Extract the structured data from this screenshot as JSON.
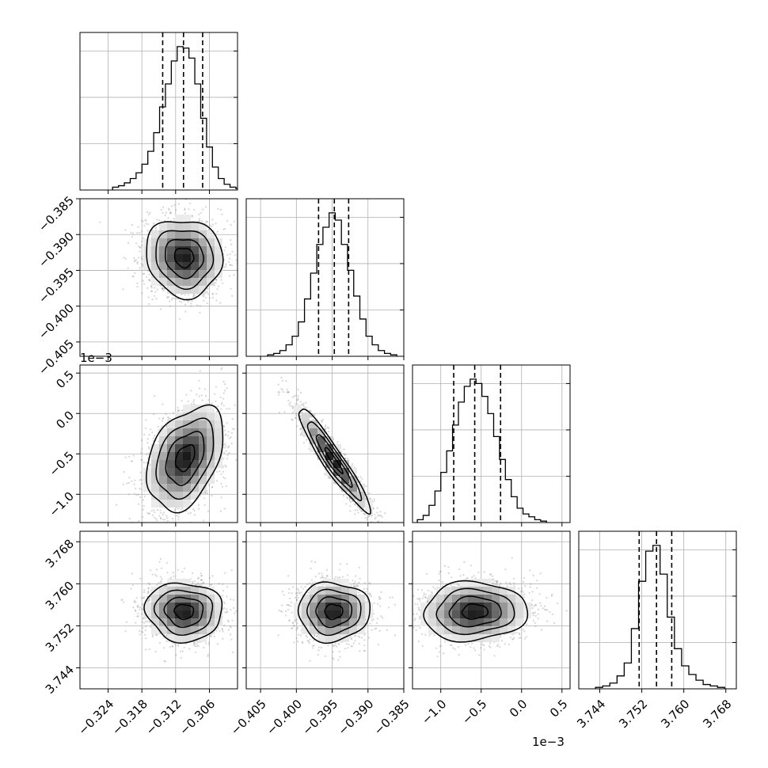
{
  "chart_data": {
    "type": "corner",
    "grid": true,
    "variables": [
      {
        "range": [
          -0.329,
          -0.301
        ],
        "ticks": [
          -0.324,
          -0.318,
          -0.312,
          -0.306
        ],
        "tick_labels": [
          "−0.324",
          "−0.318",
          "−0.312",
          "−0.306"
        ],
        "offset_label": "",
        "quantiles": [
          -0.3143,
          -0.3106,
          -0.3072
        ],
        "peak_at": -0.3112
      },
      {
        "range": [
          -0.407,
          -0.385
        ],
        "ticks": [
          -0.405,
          -0.4,
          -0.395,
          -0.39,
          -0.385
        ],
        "tick_labels": [
          "−0.405",
          "−0.400",
          "−0.395",
          "−0.390",
          "−0.385"
        ],
        "offset_label": "",
        "quantiles": [
          -0.3969,
          -0.3947,
          -0.3927
        ],
        "peak_at": -0.395
      },
      {
        "range": [
          -1.35,
          0.6
        ],
        "ticks": [
          -1.0,
          -0.5,
          0.0,
          0.5
        ],
        "tick_labels": [
          "−1.0",
          "−0.5",
          "0.0",
          "0.5"
        ],
        "offset_label": "1e−3",
        "quantiles": [
          -0.84,
          -0.58,
          -0.26
        ],
        "peak_at": -0.6
      },
      {
        "range": [
          3.74,
          3.77
        ],
        "ticks": [
          3.744,
          3.752,
          3.76,
          3.768
        ],
        "tick_labels": [
          "3.744",
          "3.752",
          "3.760",
          "3.768"
        ],
        "offset_label": "",
        "quantiles": [
          3.7515,
          3.7548,
          3.7577
        ],
        "peak_at": 3.7548
      }
    ],
    "histograms": [
      {
        "variable": 0,
        "counts": [
          2,
          3,
          5,
          8,
          12,
          18,
          27,
          40,
          58,
          74,
          90,
          100,
          99,
          92,
          74,
          50,
          30,
          16,
          8,
          4,
          2,
          1
        ]
      },
      {
        "variable": 1,
        "counts": [
          1,
          2,
          4,
          8,
          14,
          24,
          40,
          58,
          78,
          90,
          100,
          95,
          78,
          60,
          42,
          26,
          14,
          8,
          4,
          2,
          1
        ]
      },
      {
        "variable": 2,
        "counts": [
          2,
          5,
          12,
          22,
          35,
          50,
          68,
          84,
          95,
          100,
          97,
          88,
          76,
          60,
          44,
          30,
          18,
          10,
          6,
          4,
          2,
          1
        ]
      },
      {
        "variable": 3,
        "counts": [
          1,
          2,
          4,
          9,
          18,
          42,
          75,
          96,
          100,
          80,
          50,
          28,
          16,
          10,
          6,
          3,
          2,
          1
        ]
      }
    ],
    "pairs": [
      {
        "x": 0,
        "y": 1,
        "center": [
          -0.3105,
          -0.3932
        ],
        "sigma": [
          0.0034,
          0.0027
        ],
        "rho": -0.08
      },
      {
        "x": 0,
        "y": 2,
        "center": [
          -0.3103,
          -0.55
        ],
        "sigma": [
          0.0034,
          0.32
        ],
        "rho": 0.38
      },
      {
        "x": 1,
        "y": 2,
        "center": [
          -0.3948,
          -0.58
        ],
        "sigma": [
          0.0025,
          0.32
        ],
        "rho": -0.94
      },
      {
        "x": 0,
        "y": 3,
        "center": [
          -0.3105,
          3.7547
        ],
        "sigma": [
          0.0034,
          0.0028
        ],
        "rho": -0.05
      },
      {
        "x": 1,
        "y": 3,
        "center": [
          -0.3948,
          3.7547
        ],
        "sigma": [
          0.0025,
          0.0028
        ],
        "rho": 0.02
      },
      {
        "x": 2,
        "y": 3,
        "center": [
          -0.58,
          3.7547
        ],
        "sigma": [
          0.32,
          0.0028
        ],
        "rho": 0.05
      }
    ],
    "contour_levels": [
      0.5,
      1.0,
      1.5,
      2.0
    ],
    "style": {
      "line_color": "#000000",
      "grid_color": "#b0b0b0",
      "scatter_color": "#8a8a8a"
    }
  }
}
